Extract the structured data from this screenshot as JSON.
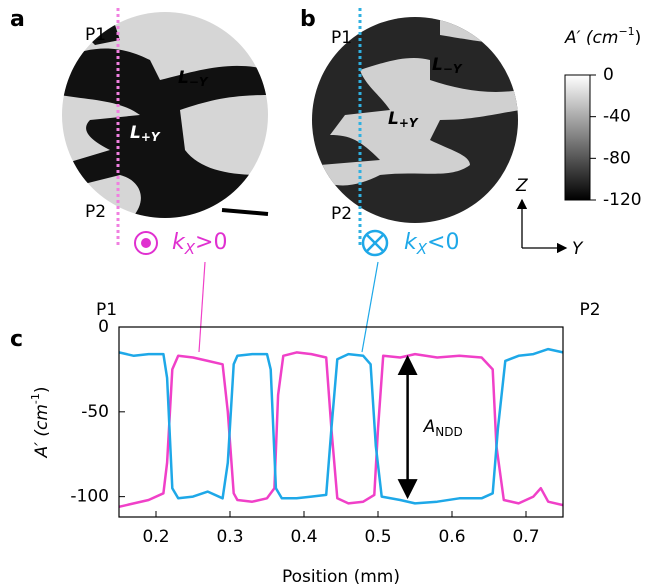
{
  "panel_labels": [
    "a",
    "b",
    "c"
  ],
  "panel_a": {
    "p1": "P1",
    "p2": "P2",
    "domains": [
      {
        "main": "L",
        "sub": "−Y"
      },
      {
        "main": "L",
        "sub": "+Y"
      }
    ],
    "k": {
      "main": "k",
      "sub": "X",
      "rest": ">0"
    }
  },
  "panel_b": {
    "p1": "P1",
    "p2": "P2",
    "domains": [
      {
        "main": "L",
        "sub": "−Y"
      },
      {
        "main": "L",
        "sub": "+Y"
      }
    ],
    "k": {
      "main": "k",
      "sub": "X",
      "rest": "<0"
    }
  },
  "colorbar": {
    "title": "A′ (cm",
    "title_sup": "−1",
    "title_end": ")",
    "lim": [
      -120,
      0
    ],
    "ticks": [
      0,
      -40,
      -80,
      -120
    ]
  },
  "axes_labels": {
    "z": "Z",
    "y": "Y"
  },
  "chart_data": {
    "type": "line",
    "xlabel": "Position (mm)",
    "ylabel": "A′ (cm",
    "ylabel_sup": "-1",
    "ylabel_end": ")",
    "corner_labels": [
      "P1",
      "P2"
    ],
    "xlim": [
      0.15,
      0.75
    ],
    "ylim": [
      -112,
      0
    ],
    "xticks": [
      0.2,
      0.3,
      0.4,
      0.5,
      0.6,
      0.7
    ],
    "yticks": [
      0,
      -50,
      -100
    ],
    "annotation": {
      "main": "A",
      "sub": "NDD",
      "x": 0.54,
      "from": -18,
      "to": -100
    },
    "series": [
      {
        "color": "#f040c8",
        "x": [
          0.15,
          0.17,
          0.19,
          0.21,
          0.215,
          0.222,
          0.23,
          0.25,
          0.27,
          0.29,
          0.297,
          0.305,
          0.31,
          0.33,
          0.35,
          0.36,
          0.365,
          0.372,
          0.39,
          0.41,
          0.43,
          0.437,
          0.445,
          0.46,
          0.48,
          0.495,
          0.5,
          0.507,
          0.53,
          0.55,
          0.58,
          0.61,
          0.64,
          0.655,
          0.66,
          0.67,
          0.69,
          0.71,
          0.72,
          0.73,
          0.75
        ],
        "values": [
          -106,
          -104,
          -102,
          -98,
          -80,
          -25,
          -17,
          -18,
          -20,
          -22,
          -50,
          -98,
          -102,
          -103,
          -101,
          -95,
          -40,
          -17,
          -15,
          -16,
          -18,
          -60,
          -101,
          -104,
          -103,
          -99,
          -60,
          -17,
          -18,
          -16,
          -18,
          -17,
          -18,
          -25,
          -70,
          -102,
          -104,
          -100,
          -95,
          -103,
          -105
        ]
      },
      {
        "color": "#1ea8e8",
        "x": [
          0.15,
          0.17,
          0.19,
          0.21,
          0.215,
          0.222,
          0.23,
          0.25,
          0.27,
          0.29,
          0.297,
          0.305,
          0.31,
          0.33,
          0.35,
          0.355,
          0.362,
          0.37,
          0.39,
          0.41,
          0.43,
          0.437,
          0.445,
          0.46,
          0.48,
          0.49,
          0.497,
          0.505,
          0.53,
          0.55,
          0.58,
          0.61,
          0.64,
          0.655,
          0.662,
          0.672,
          0.69,
          0.71,
          0.73,
          0.75
        ],
        "values": [
          -15,
          -17,
          -16,
          -16,
          -30,
          -95,
          -101,
          -100,
          -97,
          -101,
          -80,
          -22,
          -17,
          -16,
          -16,
          -25,
          -95,
          -101,
          -101,
          -100,
          -99,
          -60,
          -19,
          -16,
          -17,
          -22,
          -70,
          -100,
          -102,
          -104,
          -103,
          -101,
          -101,
          -98,
          -60,
          -20,
          -17,
          -16,
          -13,
          -15
        ]
      }
    ]
  }
}
